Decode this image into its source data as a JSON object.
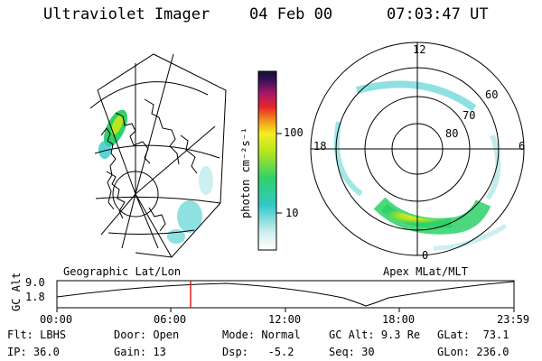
{
  "header": {
    "instrument": "Ultraviolet Imager",
    "date": "04 Feb 00",
    "time": "07:03:47 UT"
  },
  "left_panel": {
    "caption": "Geographic Lat/Lon"
  },
  "colorbar": {
    "unit_label": "photon cm⁻²s⁻¹",
    "tick_labels": [
      "100",
      "10"
    ]
  },
  "right_panel": {
    "caption": "Apex MLat/MLT",
    "mlt_labels": {
      "top": "12",
      "left": "18",
      "right": "6",
      "bottom": "0"
    },
    "lat_labels": [
      "60",
      "70",
      "80"
    ]
  },
  "altitude_plot": {
    "axis_title": "GC Alt",
    "y_ticks": [
      "9.0",
      "1.8"
    ],
    "time_ticks": [
      "00:00",
      "06:00",
      "12:00",
      "18:00",
      "23:59"
    ],
    "current_time_color": "#e02020"
  },
  "info": {
    "flt": {
      "label": "Flt:",
      "value": "LBHS"
    },
    "ip": {
      "label": "IP:",
      "value": "36.0"
    },
    "door": {
      "label": "Door:",
      "value": "Open"
    },
    "gain": {
      "label": "Gain:",
      "value": "13"
    },
    "mode": {
      "label": "Mode:",
      "value": "Normal"
    },
    "dsp": {
      "label": "Dsp:",
      "value": "-5.2"
    },
    "gc_alt": {
      "label": "GC Alt:",
      "value": "9.3 Re"
    },
    "seq": {
      "label": "Seq:",
      "value": "30"
    },
    "glat": {
      "label": "GLat:",
      "value": "73.1"
    },
    "glon": {
      "label": "GLon:",
      "value": "236.0"
    }
  }
}
